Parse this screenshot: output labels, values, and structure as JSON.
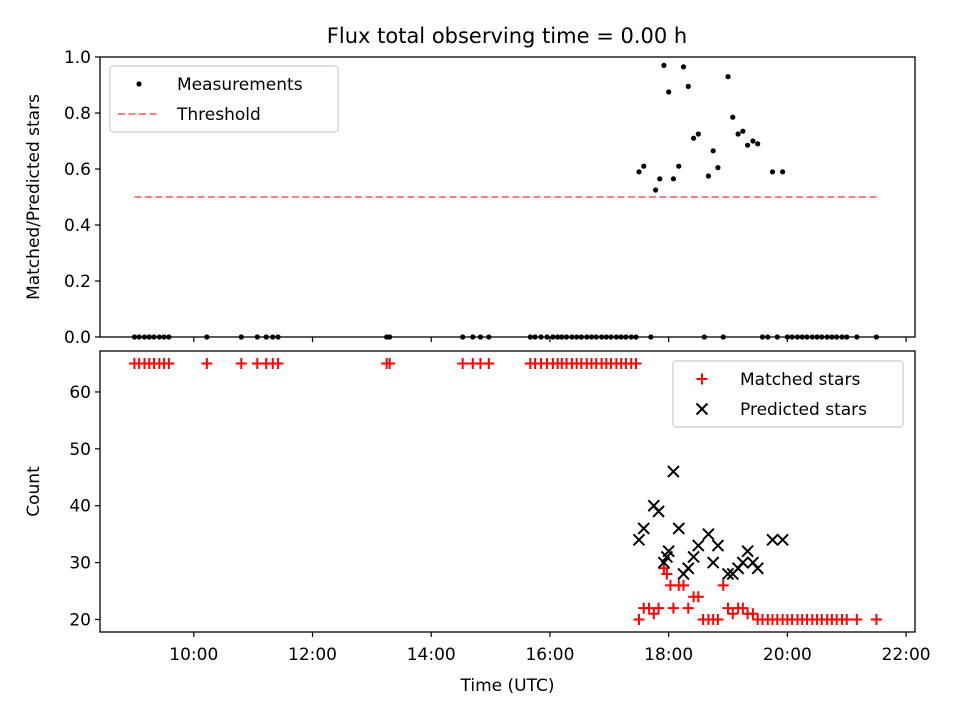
{
  "figure": {
    "title": "Flux total observing time = 0.00 h"
  },
  "chart_data": [
    {
      "type": "scatter",
      "ylabel": "Matched/Predicted stars",
      "xlabel": "",
      "xlim": [
        8.42,
        22.15
      ],
      "ylim": [
        0.0,
        1.0
      ],
      "yticks": [
        0.0,
        0.2,
        0.4,
        0.6,
        0.8,
        1.0
      ],
      "ytick_labels": [
        "0.0",
        "0.2",
        "0.4",
        "0.6",
        "0.8",
        "1.0"
      ],
      "grid": false,
      "legend": {
        "placement": "upper-left",
        "entries": [
          "Measurements",
          "Threshold"
        ]
      },
      "threshold": {
        "name": "Threshold",
        "y": 0.5,
        "x": [
          9.0,
          21.5
        ],
        "color": "#ff7f7f",
        "style": "dashed"
      },
      "series": [
        {
          "name": "Measurements",
          "marker": "dot",
          "color": "#000000",
          "x": [
            9.0,
            9.08,
            9.17,
            9.25,
            9.33,
            9.42,
            9.5,
            9.58,
            10.22,
            10.8,
            11.07,
            11.22,
            11.33,
            11.42,
            13.25,
            13.3,
            14.53,
            14.7,
            14.83,
            14.97,
            15.67,
            15.75,
            15.85,
            15.95,
            16.05,
            16.13,
            16.2,
            16.28,
            16.37,
            16.45,
            16.53,
            16.62,
            16.7,
            16.78,
            16.87,
            16.95,
            17.03,
            17.12,
            17.2,
            17.28,
            17.37,
            17.45,
            17.5,
            17.58,
            17.7,
            17.78,
            17.85,
            17.92,
            18.0,
            18.08,
            18.17,
            18.25,
            18.33,
            18.42,
            18.5,
            18.6,
            18.67,
            18.75,
            18.83,
            18.92,
            19.0,
            19.08,
            19.17,
            19.25,
            19.33,
            19.42,
            19.5,
            19.58,
            19.67,
            19.75,
            19.83,
            19.92,
            20.0,
            20.08,
            20.17,
            20.25,
            20.33,
            20.42,
            20.5,
            20.58,
            20.67,
            20.75,
            20.83,
            20.92,
            21.0,
            21.17,
            21.5
          ],
          "y": [
            0,
            0,
            0,
            0,
            0,
            0,
            0,
            0,
            0,
            0,
            0,
            0,
            0,
            0,
            0,
            0,
            0,
            0,
            0,
            0,
            0,
            0,
            0,
            0,
            0,
            0,
            0,
            0,
            0,
            0,
            0,
            0,
            0,
            0,
            0,
            0,
            0,
            0,
            0,
            0,
            0,
            0,
            0.59,
            0.61,
            0,
            0.525,
            0.565,
            0.97,
            0.875,
            0.565,
            0.61,
            0.965,
            0.895,
            0.71,
            0.725,
            0,
            0.575,
            0.665,
            0.605,
            0,
            0.93,
            0.785,
            0.725,
            0.735,
            0.685,
            0.7,
            0.69,
            0,
            0,
            0.59,
            0,
            0.59,
            0,
            0,
            0,
            0,
            0,
            0,
            0,
            0,
            0,
            0,
            0,
            0,
            0,
            0,
            0
          ]
        }
      ]
    },
    {
      "type": "scatter",
      "ylabel": "Count",
      "xlabel": "Time (UTC)",
      "xlim": [
        8.42,
        22.15
      ],
      "ylim": [
        17.8,
        67.2
      ],
      "yticks": [
        20,
        30,
        40,
        50,
        60
      ],
      "ytick_labels": [
        "20",
        "30",
        "40",
        "50",
        "60"
      ],
      "xticks": [
        10,
        12,
        14,
        16,
        18,
        20,
        22
      ],
      "xtick_labels": [
        "10:00",
        "12:00",
        "14:00",
        "16:00",
        "18:00",
        "20:00",
        "22:00"
      ],
      "grid": false,
      "legend": {
        "placement": "upper-right",
        "entries": [
          "Matched stars",
          "Predicted stars"
        ]
      },
      "series": [
        {
          "name": "Matched stars",
          "marker": "plus",
          "color": "#ff0000",
          "x": [
            9.0,
            9.08,
            9.17,
            9.25,
            9.33,
            9.42,
            9.5,
            9.58,
            10.22,
            10.8,
            11.07,
            11.22,
            11.33,
            11.42,
            13.25,
            13.3,
            14.53,
            14.7,
            14.83,
            14.97,
            15.67,
            15.75,
            15.85,
            15.95,
            16.05,
            16.13,
            16.2,
            16.28,
            16.37,
            16.45,
            16.53,
            16.62,
            16.7,
            16.78,
            16.87,
            16.95,
            17.03,
            17.12,
            17.2,
            17.28,
            17.37,
            17.45,
            17.5,
            17.58,
            17.67,
            17.75,
            17.83,
            17.92,
            17.97,
            18.03,
            18.08,
            18.17,
            18.25,
            18.33,
            18.42,
            18.5,
            18.58,
            18.67,
            18.75,
            18.83,
            18.92,
            19.0,
            19.08,
            19.17,
            19.25,
            19.33,
            19.42,
            19.5,
            19.58,
            19.67,
            19.75,
            19.83,
            19.92,
            20.0,
            20.08,
            20.17,
            20.25,
            20.33,
            20.42,
            20.5,
            20.58,
            20.67,
            20.75,
            20.83,
            20.92,
            21.0,
            21.17,
            21.5
          ],
          "y": [
            65,
            65,
            65,
            65,
            65,
            65,
            65,
            65,
            65,
            65,
            65,
            65,
            65,
            65,
            65,
            65,
            65,
            65,
            65,
            65,
            65,
            65,
            65,
            65,
            65,
            65,
            65,
            65,
            65,
            65,
            65,
            65,
            65,
            65,
            65,
            65,
            65,
            65,
            65,
            65,
            65,
            65,
            20,
            22,
            22,
            21,
            22,
            29,
            28,
            26,
            22,
            26,
            26,
            22,
            24,
            24,
            20,
            20,
            20,
            20,
            26,
            22,
            21,
            22,
            22,
            21,
            21,
            20,
            20,
            20,
            20,
            20,
            20,
            20,
            20,
            20,
            20,
            20,
            20,
            20,
            20,
            20,
            20,
            20,
            20,
            20,
            20,
            20
          ]
        },
        {
          "name": "Predicted stars",
          "marker": "x",
          "color": "#000000",
          "x": [
            17.5,
            17.58,
            17.75,
            17.83,
            17.92,
            17.97,
            18.0,
            18.08,
            18.17,
            18.25,
            18.33,
            18.42,
            18.5,
            18.67,
            18.75,
            18.83,
            19.0,
            19.08,
            19.17,
            19.25,
            19.33,
            19.42,
            19.5,
            19.75,
            19.92
          ],
          "y": [
            34,
            36,
            40,
            39,
            30,
            31,
            32,
            46,
            36,
            28,
            29,
            31,
            33,
            35,
            30,
            33,
            28,
            28,
            29,
            30,
            32,
            30,
            29,
            34,
            34
          ]
        }
      ]
    }
  ]
}
